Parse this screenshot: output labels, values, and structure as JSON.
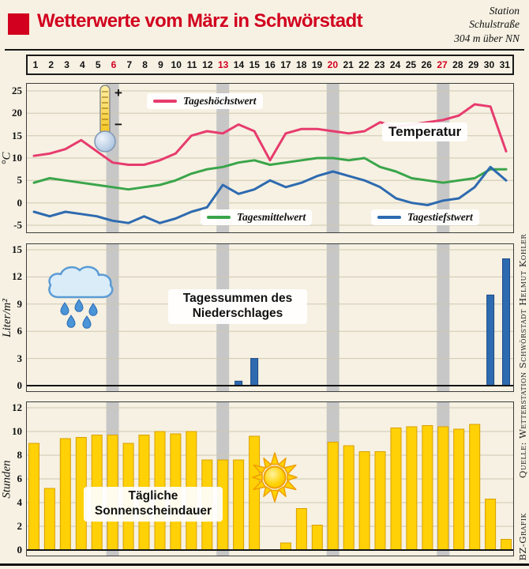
{
  "header": {
    "title": "Wetterwerte vom März in Schwörstadt",
    "station_lines": [
      "Station",
      "Schulstraße",
      "304 m über NN"
    ]
  },
  "credit": {
    "publisher": "BZ-Grafik",
    "source": "Quelle: Wetterstation Schwörstadt Helmut Kohler"
  },
  "days": [
    1,
    2,
    3,
    4,
    5,
    6,
    7,
    8,
    9,
    10,
    11,
    12,
    13,
    14,
    15,
    16,
    17,
    18,
    19,
    20,
    21,
    22,
    23,
    24,
    25,
    26,
    27,
    28,
    29,
    30,
    31
  ],
  "sundays": [
    6,
    13,
    20,
    27
  ],
  "icons": {
    "thermometer_plus": "+",
    "thermometer_minus": "−",
    "names": [
      "thermometer-icon",
      "rain-cloud-icon",
      "sun-icon"
    ]
  },
  "colors": {
    "title_red": "#d2001e",
    "panel_bg": "#f6f1e2",
    "grid": "#cfc7b2",
    "sunday_band": "#c7c7c7",
    "rain_bar": "#2e6ab0",
    "rain_bar_edge": "#1c4a85",
    "sun_bar": "#ffd106",
    "sun_bar_edge": "#d99f00"
  },
  "chart_data": [
    {
      "type": "line",
      "title": "Temperatur",
      "ylabel": "°C",
      "ylim": [
        -5,
        25
      ],
      "yticks": [
        25,
        20,
        15,
        10,
        5,
        0,
        -5
      ],
      "x": "days 1-31 (shared top axis)",
      "grid": true,
      "series": [
        {
          "name": "Tageshöchstwert",
          "color": "#e73b6e",
          "values": [
            10.5,
            11,
            12,
            14,
            11.5,
            9,
            8.5,
            8.5,
            9.5,
            11,
            15,
            16,
            15.5,
            17.5,
            16,
            9.5,
            15.5,
            16.5,
            16.5,
            16,
            15.5,
            16,
            18,
            17,
            17.5,
            18,
            18.5,
            19.5,
            22,
            21.5,
            11.5
          ]
        },
        {
          "name": "Tagesmittelwert",
          "color": "#3aa54a",
          "values": [
            4.5,
            5.5,
            5,
            4.5,
            4,
            3.5,
            3,
            3.5,
            4,
            5,
            6.5,
            7.5,
            8,
            9,
            9.5,
            8.5,
            9,
            9.5,
            10,
            10,
            9.5,
            10,
            8,
            7,
            5.5,
            5,
            4.5,
            5,
            5.5,
            7.5,
            7.5
          ]
        },
        {
          "name": "Tagestiefstwert",
          "color": "#2e6ab0",
          "values": [
            -2,
            -3,
            -2,
            -2.5,
            -3,
            -4,
            -4.5,
            -3,
            -4.5,
            -3.5,
            -2,
            -1,
            4,
            2,
            3,
            5,
            3.5,
            4.5,
            6,
            7,
            6,
            5,
            3.5,
            1,
            0,
            -0.5,
            0.5,
            1,
            3.5,
            8,
            5
          ]
        }
      ]
    },
    {
      "type": "bar",
      "title": "Tagessummen des Niederschlages",
      "title_lines": [
        "Tagessummen des",
        "Niederschlages"
      ],
      "ylabel": "Liter/m²",
      "ylim": [
        0,
        15
      ],
      "yticks": [
        15,
        12,
        9,
        6,
        3,
        0
      ],
      "x": "days 1-31 (shared top axis)",
      "grid": true,
      "values": [
        0,
        0,
        0,
        0,
        0,
        0,
        0,
        0,
        0,
        0,
        0,
        0,
        0,
        0.5,
        3,
        0,
        0,
        0,
        0,
        0,
        0,
        0,
        0,
        0,
        0,
        0,
        0,
        0,
        0,
        10,
        14
      ]
    },
    {
      "type": "bar",
      "title": "Tägliche Sonnenscheindauer",
      "title_lines": [
        "Tägliche",
        "Sonnenscheindauer"
      ],
      "ylabel": "Stunden",
      "ylim": [
        0,
        12
      ],
      "yticks": [
        12,
        10,
        8,
        6,
        4,
        2,
        0
      ],
      "x": "days 1-31 (shared top axis)",
      "grid": true,
      "values": [
        9,
        5.2,
        9.4,
        9.5,
        9.7,
        9.7,
        9,
        9.7,
        10,
        9.8,
        10,
        7.6,
        7.6,
        7.6,
        9.6,
        0,
        0.6,
        3.5,
        2.1,
        9.1,
        8.8,
        8.3,
        8.3,
        10.3,
        10.4,
        10.5,
        10.4,
        10.2,
        10.6,
        4.3,
        0.9
      ]
    }
  ]
}
